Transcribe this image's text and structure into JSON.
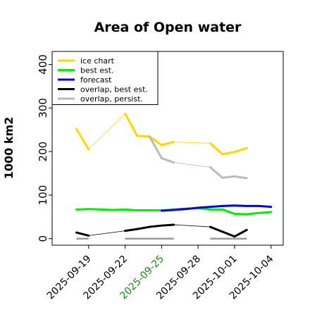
{
  "chart_data": {
    "type": "line",
    "title": "Area of Open water",
    "xlabel": "",
    "ylabel": "1000 km2",
    "ylim": [
      -15,
      430
    ],
    "yticks": [
      0,
      100,
      200,
      300,
      400
    ],
    "xlim": [
      "2025-09-16",
      "2025-10-05"
    ],
    "xticks": [
      "2025-09-19",
      "2025-09-22",
      "2025-09-25",
      "2025-09-28",
      "2025-10-01",
      "2025-10-04"
    ],
    "highlight_tick": "2025-09-25",
    "highlight_color": "#1a8a1a",
    "legend_position": "top-left",
    "series": [
      {
        "name": "ice chart",
        "color": "#ffd700",
        "width": 3,
        "points": [
          [
            "2025-09-18",
            252
          ],
          [
            "2025-09-19",
            205
          ],
          [
            "2025-09-22",
            287
          ],
          [
            "2025-09-23",
            236
          ],
          [
            "2025-09-24",
            235
          ],
          [
            "2025-09-25",
            215
          ],
          [
            "2025-09-26",
            222
          ],
          [
            "2025-09-29",
            219
          ],
          [
            "2025-09-30",
            194
          ],
          [
            "2025-10-01",
            199
          ],
          [
            "2025-10-02",
            208
          ]
        ],
        "thin_segments": [
          [
            "2025-09-19",
            "2025-09-22"
          ],
          [
            "2025-09-26",
            "2025-09-29"
          ]
        ]
      },
      {
        "name": "best est.",
        "color": "#00ee00",
        "width": 3,
        "points": [
          [
            "2025-09-18",
            67
          ],
          [
            "2025-09-19",
            68
          ],
          [
            "2025-09-20",
            67
          ],
          [
            "2025-09-21",
            66
          ],
          [
            "2025-09-22",
            67
          ],
          [
            "2025-09-23",
            65
          ],
          [
            "2025-09-24",
            65
          ],
          [
            "2025-09-25",
            65
          ],
          [
            "2025-09-26",
            67
          ],
          [
            "2025-09-27",
            69
          ],
          [
            "2025-09-28",
            70
          ],
          [
            "2025-09-29",
            67
          ],
          [
            "2025-09-30",
            67
          ],
          [
            "2025-10-01",
            57
          ],
          [
            "2025-10-02",
            56
          ],
          [
            "2025-10-03",
            59
          ],
          [
            "2025-10-04",
            61
          ]
        ]
      },
      {
        "name": "forecast",
        "color": "#0000ee",
        "width": 3,
        "points": [
          [
            "2025-09-25",
            64
          ],
          [
            "2025-09-26",
            66
          ],
          [
            "2025-09-27",
            68
          ],
          [
            "2025-09-28",
            71
          ],
          [
            "2025-09-29",
            73
          ],
          [
            "2025-09-30",
            75
          ],
          [
            "2025-10-01",
            76
          ],
          [
            "2025-10-02",
            75
          ],
          [
            "2025-10-03",
            75
          ],
          [
            "2025-10-04",
            73
          ]
        ]
      },
      {
        "name": "overlap, best est.",
        "color": "#000000",
        "width": 3,
        "points": [
          [
            "2025-09-18",
            14
          ],
          [
            "2025-09-19",
            7
          ],
          [
            "2025-09-22",
            18
          ],
          [
            "2025-09-23",
            22
          ],
          [
            "2025-09-24",
            27
          ],
          [
            "2025-09-25",
            30
          ],
          [
            "2025-09-26",
            32
          ],
          [
            "2025-09-29",
            27
          ],
          [
            "2025-09-30",
            16
          ],
          [
            "2025-10-01",
            5
          ],
          [
            "2025-10-02",
            20
          ]
        ],
        "thin_segments": [
          [
            "2025-09-19",
            "2025-09-22"
          ],
          [
            "2025-09-26",
            "2025-09-29"
          ]
        ]
      },
      {
        "name": "overlap, persist.",
        "color": "#bbbbbb",
        "width": 3,
        "points": [
          [
            "2025-09-24",
            235
          ],
          [
            "2025-09-25",
            185
          ],
          [
            "2025-09-26",
            175
          ],
          [
            "2025-09-29",
            164
          ],
          [
            "2025-09-30",
            140
          ],
          [
            "2025-10-01",
            143
          ],
          [
            "2025-10-02",
            139
          ]
        ],
        "thin_segments": [
          [
            "2025-09-26",
            "2025-09-29"
          ]
        ]
      }
    ],
    "baseline_segments": {
      "color": "#999999",
      "value": 0,
      "ranges": [
        [
          "2025-09-18",
          "2025-09-19"
        ],
        [
          "2025-09-22",
          "2025-09-26"
        ],
        [
          "2025-09-29",
          "2025-10-02"
        ]
      ]
    }
  }
}
